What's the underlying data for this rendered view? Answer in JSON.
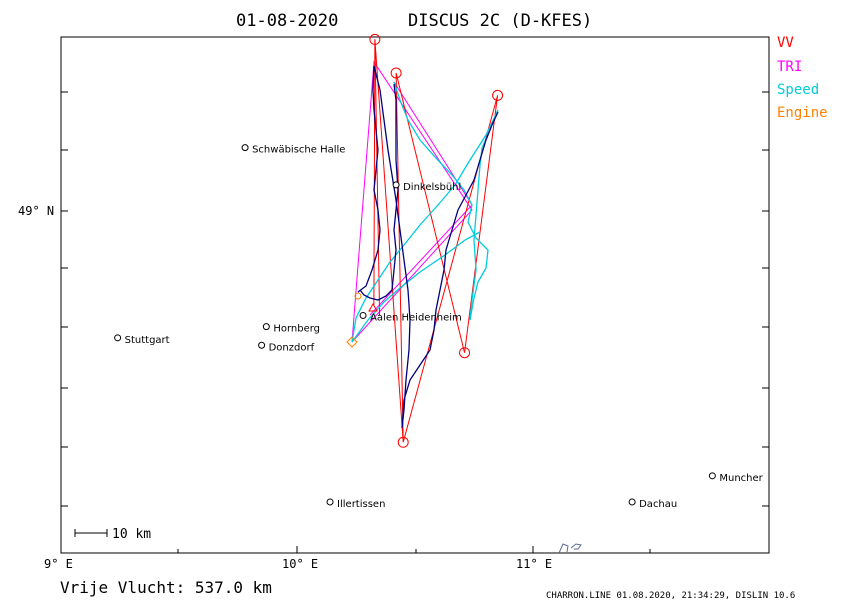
{
  "header": {
    "date": "01-08-2020",
    "glider": "DISCUS 2C (D-KFES)"
  },
  "legend": [
    {
      "label": "VV",
      "color": "#ff0000"
    },
    {
      "label": "TRI",
      "color": "#ff00ff"
    },
    {
      "label": "Speed",
      "color": "#00ccdd"
    },
    {
      "label": "Engine",
      "color": "#ff8000"
    }
  ],
  "axes": {
    "lat_label": "49° N",
    "lon_labels": [
      "9° E",
      "10° E",
      "11° E"
    ],
    "scale_label": "10 km"
  },
  "colors": {
    "track": "#000080",
    "vv": "#ff0000",
    "tri": "#ff00ff",
    "speed": "#00ccdd",
    "engine": "#ff8000"
  },
  "cities": [
    {
      "name": "Schwäbische Halle",
      "lon": 9.78,
      "lat": 49.17
    },
    {
      "name": "Dinkelsbühl",
      "lon": 10.42,
      "lat": 49.07
    },
    {
      "name": "Aalen Heidenheim",
      "lon": 10.28,
      "lat": 48.72
    },
    {
      "name": "Hornberg",
      "lon": 9.87,
      "lat": 48.69
    },
    {
      "name": "Stuttgart",
      "lon": 9.24,
      "lat": 48.66
    },
    {
      "name": "Donzdorf",
      "lon": 9.85,
      "lat": 48.64
    },
    {
      "name": "Muncher",
      "lon": 11.76,
      "lat": 48.29
    },
    {
      "name": "Illertissen",
      "lon": 10.14,
      "lat": 48.22
    },
    {
      "name": "Dachau",
      "lon": 11.42,
      "lat": 48.22
    }
  ],
  "turnpoints_vv": [
    {
      "lon": 10.33,
      "lat": 49.46
    },
    {
      "lon": 10.45,
      "lat": 48.38
    },
    {
      "lon": 10.42,
      "lat": 49.37
    },
    {
      "lon": 10.71,
      "lat": 48.62
    },
    {
      "lon": 10.85,
      "lat": 49.31
    },
    {
      "lon": 10.35,
      "lat": 48.72
    }
  ],
  "footer": {
    "result": "Vrije Vlucht:  537.0 km",
    "credit": "CHARRON.LINE 01.08.2020, 21:34:29, DISLIN 10.6"
  }
}
